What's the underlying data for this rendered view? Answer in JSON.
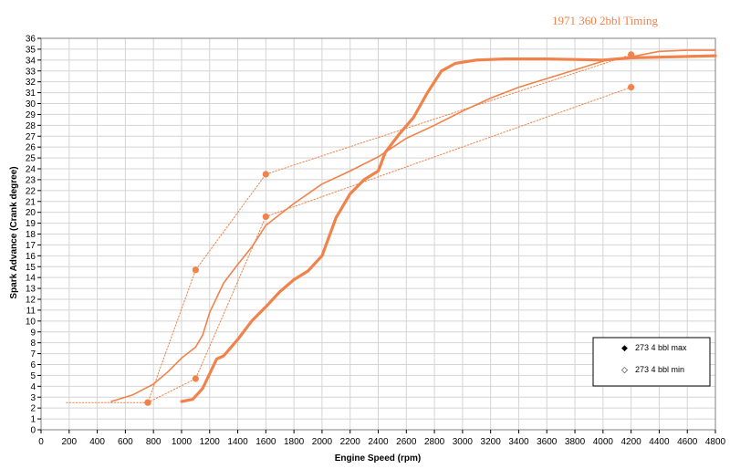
{
  "chart_data": {
    "type": "line",
    "title": "1971 360 2bbl Timing",
    "xlabel": "Engine Speed (rpm)",
    "ylabel": "Spark Advance (Crank degree)",
    "xlim": [
      0,
      4800
    ],
    "ylim": [
      0,
      36
    ],
    "xticks": [
      0,
      200,
      400,
      600,
      800,
      1000,
      1200,
      1400,
      1600,
      1800,
      2000,
      2200,
      2400,
      2600,
      2800,
      3000,
      3200,
      3400,
      3600,
      3800,
      4000,
      4200,
      4400,
      4600,
      4800
    ],
    "yticks": [
      0,
      1,
      2,
      3,
      4,
      5,
      6,
      7,
      8,
      9,
      10,
      11,
      12,
      13,
      14,
      15,
      16,
      17,
      18,
      19,
      20,
      21,
      22,
      23,
      24,
      25,
      26,
      27,
      28,
      29,
      30,
      31,
      32,
      33,
      34,
      35,
      36
    ],
    "grid": true,
    "legend_position": "bottom-right",
    "colors": {
      "accent": "#f0824a",
      "grid": "#d4d4d4",
      "frame": "#808080"
    },
    "series": [
      {
        "name": "",
        "style": "thick-curve",
        "x": [
          1000,
          1080,
          1150,
          1250,
          1300,
          1400,
          1500,
          1600,
          1700,
          1800,
          1900,
          2000,
          2100,
          2200,
          2300,
          2400,
          2450,
          2550,
          2650,
          2750,
          2850,
          2950,
          3100,
          3300,
          3600,
          4000,
          4200,
          4500,
          4800
        ],
        "y": [
          2.6,
          2.8,
          3.8,
          6.5,
          6.8,
          8.3,
          10.0,
          11.3,
          12.7,
          13.8,
          14.6,
          16.0,
          19.5,
          21.7,
          23.0,
          23.8,
          25.5,
          27.2,
          28.7,
          31.0,
          33.0,
          33.7,
          34.0,
          34.1,
          34.1,
          34.0,
          34.2,
          34.3,
          34.4
        ]
      },
      {
        "name": "",
        "style": "medium-curve",
        "x": [
          500,
          650,
          800,
          900,
          1000,
          1100,
          1150,
          1200,
          1300,
          1400,
          1500,
          1600,
          1700,
          1800,
          2000,
          2200,
          2400,
          2600,
          2800,
          3000,
          3200,
          3400,
          3600,
          3800,
          4000,
          4200,
          4400,
          4600,
          4800
        ],
        "y": [
          2.6,
          3.2,
          4.2,
          5.3,
          6.6,
          7.6,
          8.7,
          10.8,
          13.5,
          15.2,
          16.8,
          18.8,
          19.8,
          20.8,
          22.6,
          23.8,
          25.1,
          26.8,
          28.0,
          29.3,
          30.5,
          31.5,
          32.3,
          33.1,
          33.9,
          34.3,
          34.8,
          34.9,
          34.9
        ]
      },
      {
        "name": "",
        "style": "dotted-markers",
        "x": [
          180,
          760,
          1100,
          1600,
          4200
        ],
        "y": [
          2.5,
          2.5,
          14.7,
          23.5,
          34.5
        ]
      },
      {
        "name": "",
        "style": "dotted-markers",
        "x": [
          760,
          1100,
          1600,
          4200
        ],
        "y": [
          2.5,
          4.7,
          19.6,
          31.5
        ]
      }
    ],
    "legend": [
      "273 4 bbl max",
      "273 4 bbl min"
    ]
  }
}
